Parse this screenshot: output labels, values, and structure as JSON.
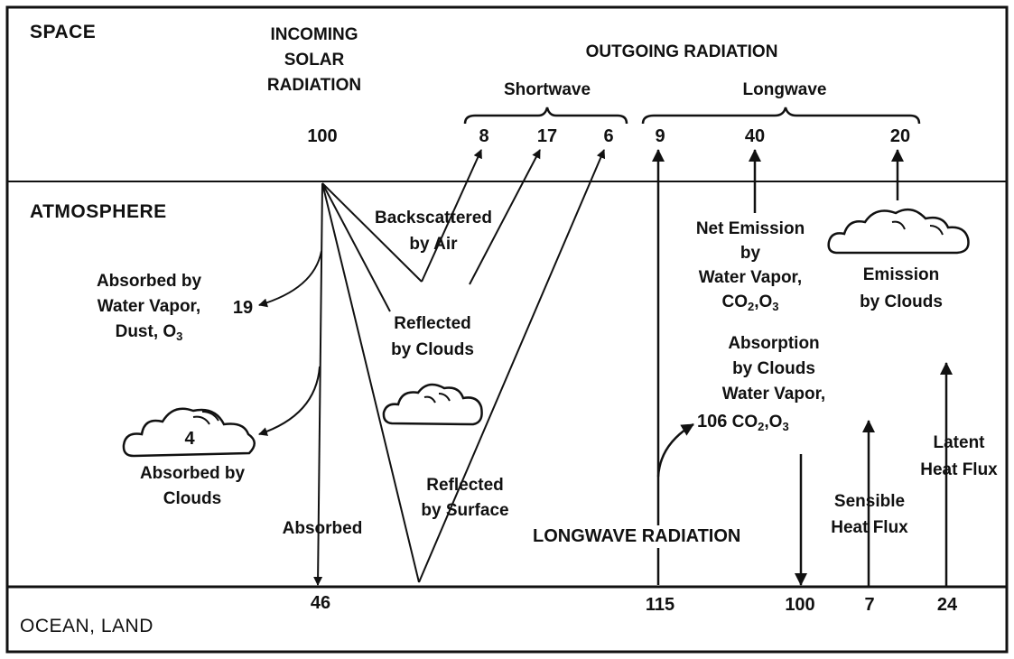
{
  "regions": {
    "space": "SPACE",
    "atmosphere": "ATMOSPHERE",
    "surface": "OCEAN, LAND"
  },
  "incoming": {
    "line1": "INCOMING",
    "line2": "SOLAR",
    "line3": "RADIATION",
    "value": "100"
  },
  "outgoing": {
    "title": "OUTGOING RADIATION",
    "shortwave_label": "Shortwave",
    "longwave_label": "Longwave",
    "shortwave_values": [
      "8",
      "17",
      "6"
    ],
    "longwave_values": [
      "9",
      "40",
      "20"
    ]
  },
  "flows": {
    "backscatter": {
      "line1": "Backscattered",
      "line2": "by Air"
    },
    "reflected_clouds": {
      "line1": "Reflected",
      "line2": "by Clouds"
    },
    "absorbed_vapor": {
      "line1": "Absorbed by",
      "line2": "Water Vapor,",
      "line3": "Dust, O",
      "line3_sub": "3",
      "value": "19"
    },
    "absorbed_clouds": {
      "line1": "Absorbed by",
      "line2": "Clouds",
      "value": "4"
    },
    "absorbed_surface": {
      "label": "Absorbed",
      "value": "46"
    },
    "reflected_surface": {
      "line1": "Reflected",
      "line2": "by Surface"
    },
    "net_emission": {
      "line1": "Net Emission",
      "line2": "by",
      "line3": "Water Vapor,",
      "line4a": "CO",
      "line4_sub1": "2",
      "line4b": ",O",
      "line4_sub2": "3"
    },
    "emission_clouds": {
      "line1": "Emission",
      "line2": "by Clouds"
    },
    "absorption_clouds": {
      "line1": "Absorption",
      "line2": "by Clouds",
      "line3": "Water Vapor,",
      "value": "106",
      "line4a": "CO",
      "line4_sub1": "2",
      "line4b": ",O",
      "line4_sub2": "3"
    },
    "longwave_radiation": {
      "label": "LONGWAVE RADIATION",
      "up_value": "115",
      "down_value": "100"
    },
    "sensible": {
      "line1": "Sensible",
      "line2": "Heat Flux",
      "value": "7"
    },
    "latent": {
      "line1": "Latent",
      "line2": "Heat Flux",
      "value": "24"
    }
  }
}
